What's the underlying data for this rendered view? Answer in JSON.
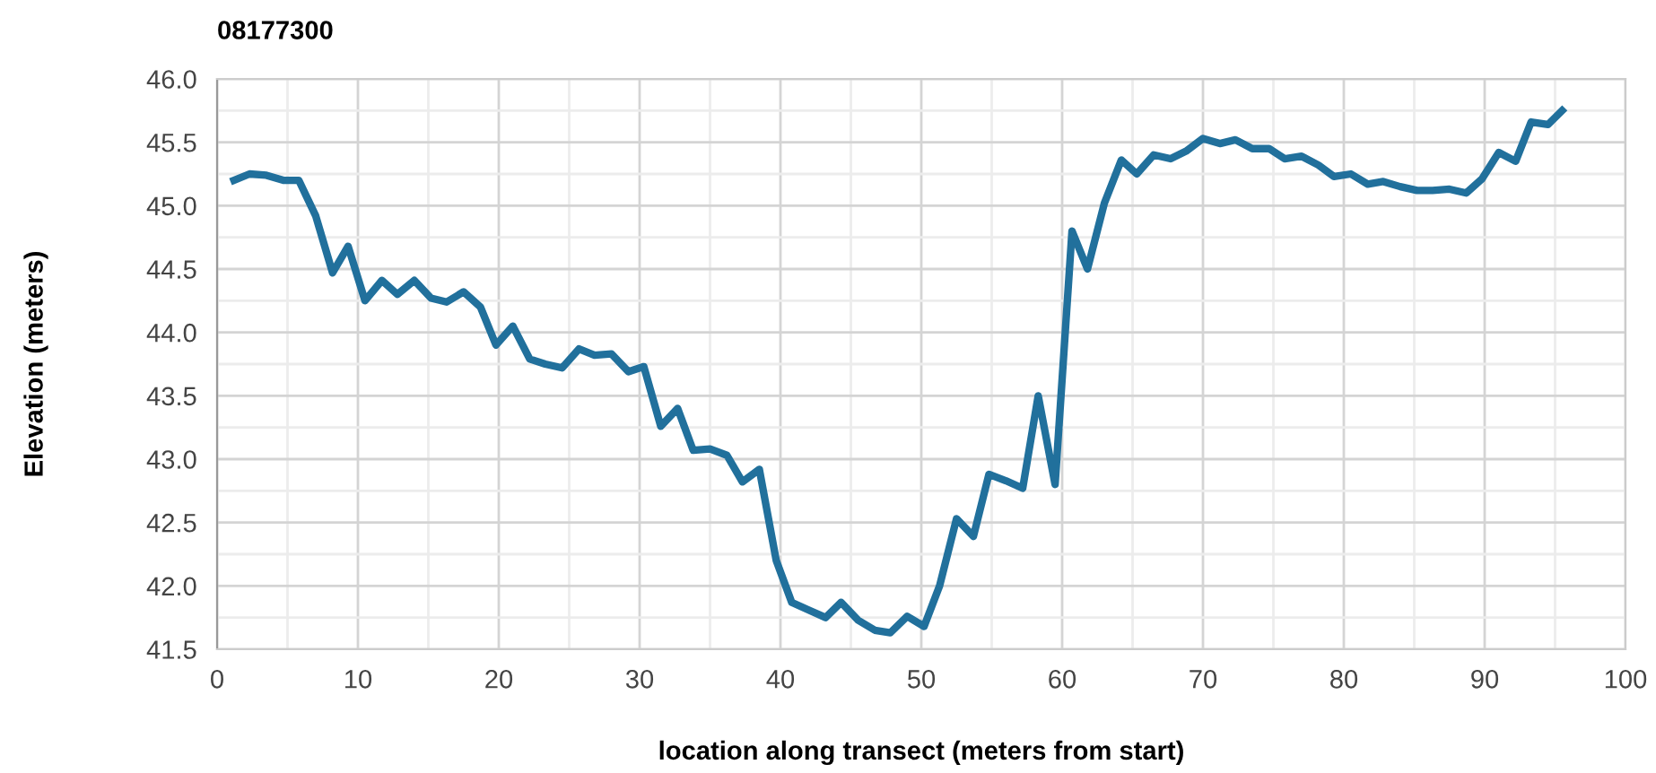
{
  "chart_data": {
    "type": "line",
    "title": "08177300",
    "xlabel": "location along transect (meters from start)",
    "ylabel": "Elevation (meters)",
    "x": [
      1.2,
      2.3,
      3.5,
      4.7,
      5.8,
      7,
      8.2,
      9.3,
      10.5,
      11.7,
      12.8,
      14,
      15.2,
      16.3,
      17.5,
      18.7,
      19.8,
      21,
      22.2,
      23.3,
      24.5,
      25.7,
      26.8,
      28,
      29.2,
      30.3,
      31.5,
      32.7,
      33.8,
      35,
      36.2,
      37.3,
      38.5,
      39.7,
      40.8,
      42,
      43.2,
      44.3,
      45.5,
      46.7,
      47.8,
      49,
      50.2,
      51.3,
      52.5,
      53.7,
      54.8,
      56,
      57.2,
      58.3,
      59.5,
      60.7,
      61.8,
      63,
      64.2,
      65.3,
      66.5,
      67.7,
      68.8,
      70,
      71.2,
      72.3,
      73.5,
      74.7,
      75.8,
      77,
      78.2,
      79.3,
      80.5,
      81.7,
      82.8,
      84,
      85.2,
      86.3,
      87.5,
      88.7,
      89.8,
      91,
      92.2,
      93.3,
      94.5,
      95.5
    ],
    "series": [
      {
        "color": "#21709c",
        "values": [
          45.2,
          45.25,
          45.24,
          45.2,
          45.2,
          44.92,
          44.47,
          44.68,
          44.25,
          44.41,
          44.3,
          44.41,
          44.27,
          44.24,
          44.32,
          44.2,
          43.9,
          44.05,
          43.79,
          43.75,
          43.72,
          43.87,
          43.82,
          43.83,
          43.69,
          43.73,
          43.26,
          43.4,
          43.07,
          43.08,
          43.03,
          42.82,
          42.92,
          42.2,
          41.87,
          41.81,
          41.75,
          41.87,
          41.73,
          41.65,
          41.63,
          41.76,
          41.68,
          42.0,
          42.53,
          42.39,
          42.88,
          42.83,
          42.77,
          43.5,
          42.8,
          44.8,
          44.5,
          45.02,
          45.36,
          45.25,
          45.4,
          45.37,
          45.43,
          45.53,
          45.49,
          45.52,
          45.45,
          45.45,
          45.37,
          45.39,
          45.32,
          45.23,
          45.25,
          45.17,
          45.19,
          45.15,
          45.12,
          45.12,
          45.13,
          45.1,
          45.21,
          45.42,
          45.35,
          45.66,
          45.64,
          45.75
        ]
      }
    ],
    "xlim": [
      0,
      100
    ],
    "xticks": [
      0,
      {
        "value": 5,
        "label": null
      },
      10,
      {
        "value": 15,
        "label": null
      },
      20,
      {
        "value": 25,
        "label": null
      },
      30,
      {
        "value": 35,
        "label": null
      },
      40,
      {
        "value": 45,
        "label": null
      },
      50,
      {
        "value": 55,
        "label": null
      },
      60,
      {
        "value": 65,
        "label": null
      },
      70,
      {
        "value": 75,
        "label": null
      },
      80,
      {
        "value": 85,
        "label": null
      },
      90,
      {
        "value": 95,
        "label": null
      },
      100
    ],
    "ylim": [
      41.5,
      46.0
    ],
    "yticks": [
      {
        "value": 41.5,
        "label": "41.5"
      },
      {
        "value": 41.75,
        "label": null
      },
      {
        "value": 42,
        "label": "42.0"
      },
      {
        "value": 42.25,
        "label": null
      },
      {
        "value": 42.5,
        "label": "42.5"
      },
      {
        "value": 42.75,
        "label": null
      },
      {
        "value": 43,
        "label": "43.0"
      },
      {
        "value": 43.25,
        "label": null
      },
      {
        "value": 43.5,
        "label": "43.5"
      },
      {
        "value": 43.75,
        "label": null
      },
      {
        "value": 44,
        "label": "44.0"
      },
      {
        "value": 44.25,
        "label": null
      },
      {
        "value": 44.5,
        "label": "44.5"
      },
      {
        "value": 44.75,
        "label": null
      },
      {
        "value": 45,
        "label": "45.0"
      },
      {
        "value": 45.25,
        "label": null
      },
      {
        "value": 45.5,
        "label": "45.5"
      },
      {
        "value": 45.75,
        "label": null
      },
      {
        "value": 46,
        "label": "46.0"
      }
    ],
    "grid": true,
    "legend": false,
    "marker": "none",
    "line_style": "solid"
  }
}
